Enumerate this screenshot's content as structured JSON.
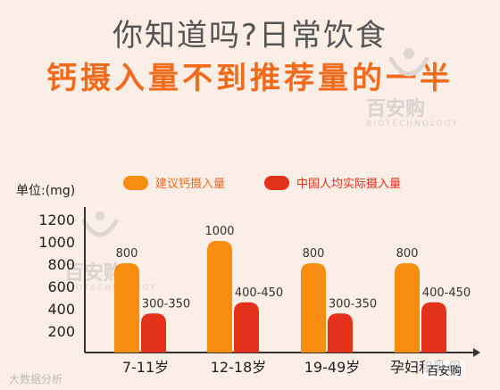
{
  "header": {
    "line1": "你知道吗?日常饮食",
    "line2": "钙摄入量不到推荐量的一半"
  },
  "watermark": {
    "brand": "百安购",
    "sub": "BIOTECHNOLOGY"
  },
  "footer": {
    "left": "大数据分析",
    "right": "百安购"
  },
  "colors": {
    "recommended": "#f78d0f",
    "actual": "#e4311c",
    "axis": "#333333"
  },
  "chart_data": {
    "type": "bar",
    "title": "",
    "ylabel": "单位:(mg)",
    "xlabel": "",
    "ylim": [
      0,
      1300
    ],
    "yticks": [
      200,
      400,
      600,
      800,
      1000,
      1200
    ],
    "categories": [
      "7-11岁",
      "12-18岁",
      "19-49岁",
      "孕妇和乳母"
    ],
    "series": [
      {
        "name": "建议钙摄入量",
        "values": [
          800,
          1000,
          800,
          800
        ],
        "labels": [
          "800",
          "1000",
          "800",
          "800"
        ]
      },
      {
        "name": "中国人均实际摄入量",
        "values": [
          350,
          450,
          350,
          450
        ],
        "labels": [
          "300-350",
          "400-450",
          "300-350",
          "400-450"
        ]
      }
    ],
    "legend": "top"
  }
}
